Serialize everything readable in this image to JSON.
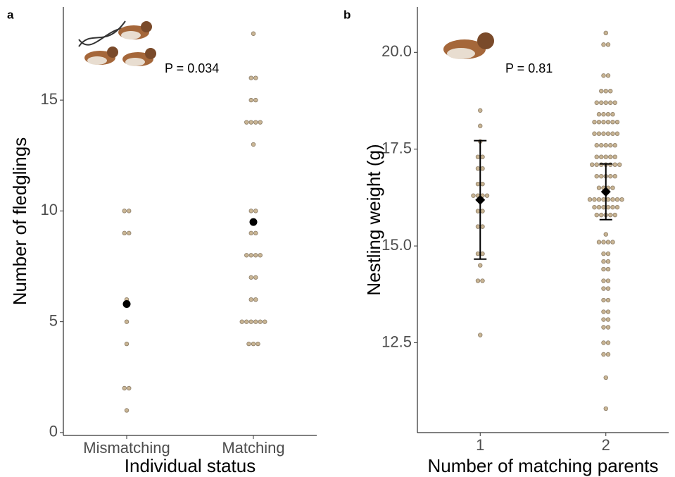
{
  "chart_data": [
    {
      "type": "dot",
      "panel_label": "a",
      "ylabel": "Number of fledglings",
      "xlabel": "Individual status",
      "annotation": "P = 0.034",
      "categories": [
        "Mismatching",
        "Matching"
      ],
      "points": [
        [
          10,
          10,
          9,
          9,
          6,
          5,
          4,
          2,
          2,
          1
        ],
        [
          18,
          16,
          16,
          15,
          15,
          14,
          14,
          14,
          14,
          13,
          10,
          10,
          9,
          9,
          8,
          8,
          8,
          8,
          7,
          7,
          6,
          6,
          5,
          5,
          5,
          5,
          5,
          5,
          4,
          4,
          4
        ]
      ],
      "means": [
        5.8,
        9.5
      ],
      "point_color": "#c9b594",
      "mean_color": "#000000",
      "ylim": [
        -0.13,
        19.2
      ],
      "yticks": [
        0,
        5,
        10,
        15
      ]
    },
    {
      "type": "dot",
      "panel_label": "b",
      "ylabel": "Nestling weight (g)",
      "xlabel": "Number of matching parents",
      "annotation": "P = 0.81",
      "categories": [
        "1",
        "2"
      ],
      "points": [
        [
          18.5,
          18.1,
          17.7,
          17.3,
          17.3,
          17.0,
          17.0,
          16.6,
          16.6,
          16.3,
          16.3,
          16.3,
          16.3,
          15.9,
          15.9,
          15.5,
          15.5,
          14.8,
          14.8,
          14.5,
          14.1,
          14.1,
          12.7
        ],
        [
          20.5,
          20.2,
          20.2,
          19.4,
          19.4,
          19.0,
          19.0,
          19.0,
          18.7,
          18.7,
          18.7,
          18.7,
          18.7,
          18.4,
          18.4,
          18.4,
          18.4,
          18.2,
          18.2,
          18.2,
          18.2,
          18.2,
          18.2,
          17.9,
          17.9,
          17.9,
          17.9,
          17.9,
          17.9,
          17.6,
          17.6,
          17.6,
          17.6,
          17.6,
          17.3,
          17.3,
          17.3,
          17.3,
          17.3,
          17.1,
          17.1,
          17.1,
          17.1,
          17.1,
          17.1,
          17.1,
          16.8,
          16.8,
          16.8,
          16.8,
          16.8,
          16.5,
          16.5,
          16.5,
          16.5,
          16.2,
          16.2,
          16.2,
          16.2,
          16.2,
          16.2,
          16.2,
          16.2,
          16.0,
          16.0,
          16.0,
          16.0,
          16.0,
          16.0,
          15.8,
          15.8,
          15.8,
          15.8,
          15.8,
          15.3,
          15.1,
          15.1,
          15.1,
          15.1,
          14.8,
          14.8,
          14.6,
          14.6,
          14.4,
          14.4,
          14.1,
          14.1,
          13.9,
          13.9,
          13.6,
          13.6,
          13.3,
          13.3,
          13.1,
          13.1,
          12.9,
          12.9,
          12.5,
          12.5,
          12.2,
          12.2,
          11.6,
          10.8
        ]
      ],
      "means": [
        16.19,
        16.4
      ],
      "errors": [
        1.53,
        0.72
      ],
      "point_color": "#c9b594",
      "mean_color": "#000000",
      "ylim": [
        10.18,
        21.17
      ],
      "yticks": [
        12.5,
        {
          "value": 15,
          "label": "15.0"
        },
        17.5,
        {
          "value": 20,
          "label": "20.0"
        }
      ]
    }
  ]
}
